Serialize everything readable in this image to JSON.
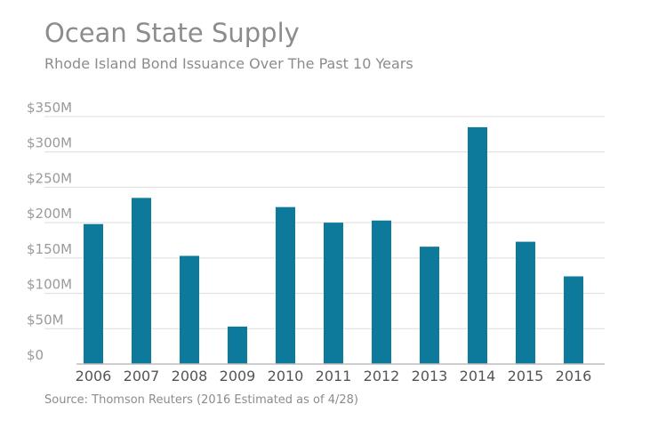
{
  "chart_data": {
    "type": "bar",
    "title": "Ocean State Supply",
    "subtitle": "Rhode Island Bond Issuance Over The Past 10 Years",
    "source": "Source: Thomson Reuters (2016 Estimated as of 4/28)",
    "xlabel": "",
    "ylabel": "",
    "categories": [
      "2006",
      "2007",
      "2008",
      "2009",
      "2010",
      "2011",
      "2012",
      "2013",
      "2014",
      "2015",
      "2016"
    ],
    "values": [
      198,
      235,
      153,
      53,
      222,
      200,
      203,
      166,
      335,
      173,
      124
    ],
    "ylim": [
      0,
      350
    ],
    "yticks": [
      0,
      50,
      100,
      150,
      200,
      250,
      300,
      350
    ],
    "ytick_labels": [
      "$0",
      "$50M",
      "$100M",
      "$150M",
      "$200M",
      "$250M",
      "$300M",
      "$350M"
    ],
    "grid": true,
    "bar_color": "#0e7a9b",
    "grid_color": "#dcdcdc",
    "axis_color": "#bdbdbd"
  }
}
